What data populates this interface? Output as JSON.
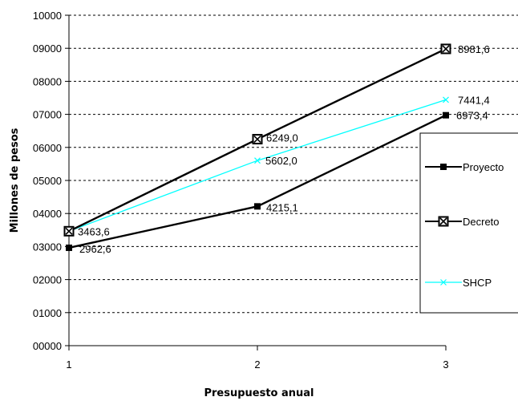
{
  "chart_data": {
    "type": "line",
    "x": [
      1,
      2,
      3
    ],
    "xlabel": "Presupuesto anual",
    "ylabel": "Millones de pesos",
    "ylim": [
      0,
      10000
    ],
    "x_ticks": [
      "1",
      "2",
      "3"
    ],
    "y_ticks": [
      "00000",
      "01000",
      "02000",
      "03000",
      "04000",
      "05000",
      "06000",
      "07000",
      "08000",
      "09000",
      "10000"
    ],
    "grid": "horizontal dashed",
    "legend_position": "right",
    "series": [
      {
        "name": "Proyecto",
        "values": [
          2962.6,
          4215.1,
          6973.4
        ],
        "labels": [
          "2962,6",
          "4215,1",
          "6973,4"
        ],
        "color": "#000000",
        "marker": "filled-square"
      },
      {
        "name": "Decreto",
        "values": [
          3463.6,
          6249.0,
          8981.6
        ],
        "labels": [
          "3463,6",
          "6249,0",
          "8981,6"
        ],
        "color": "#000000",
        "marker": "crossed-square"
      },
      {
        "name": "SHCP",
        "values": [
          3463.6,
          5602.0,
          7441.4
        ],
        "labels": [
          "",
          "5602,0",
          "7441,4"
        ],
        "color": "#00ffff",
        "marker": "x"
      }
    ]
  }
}
